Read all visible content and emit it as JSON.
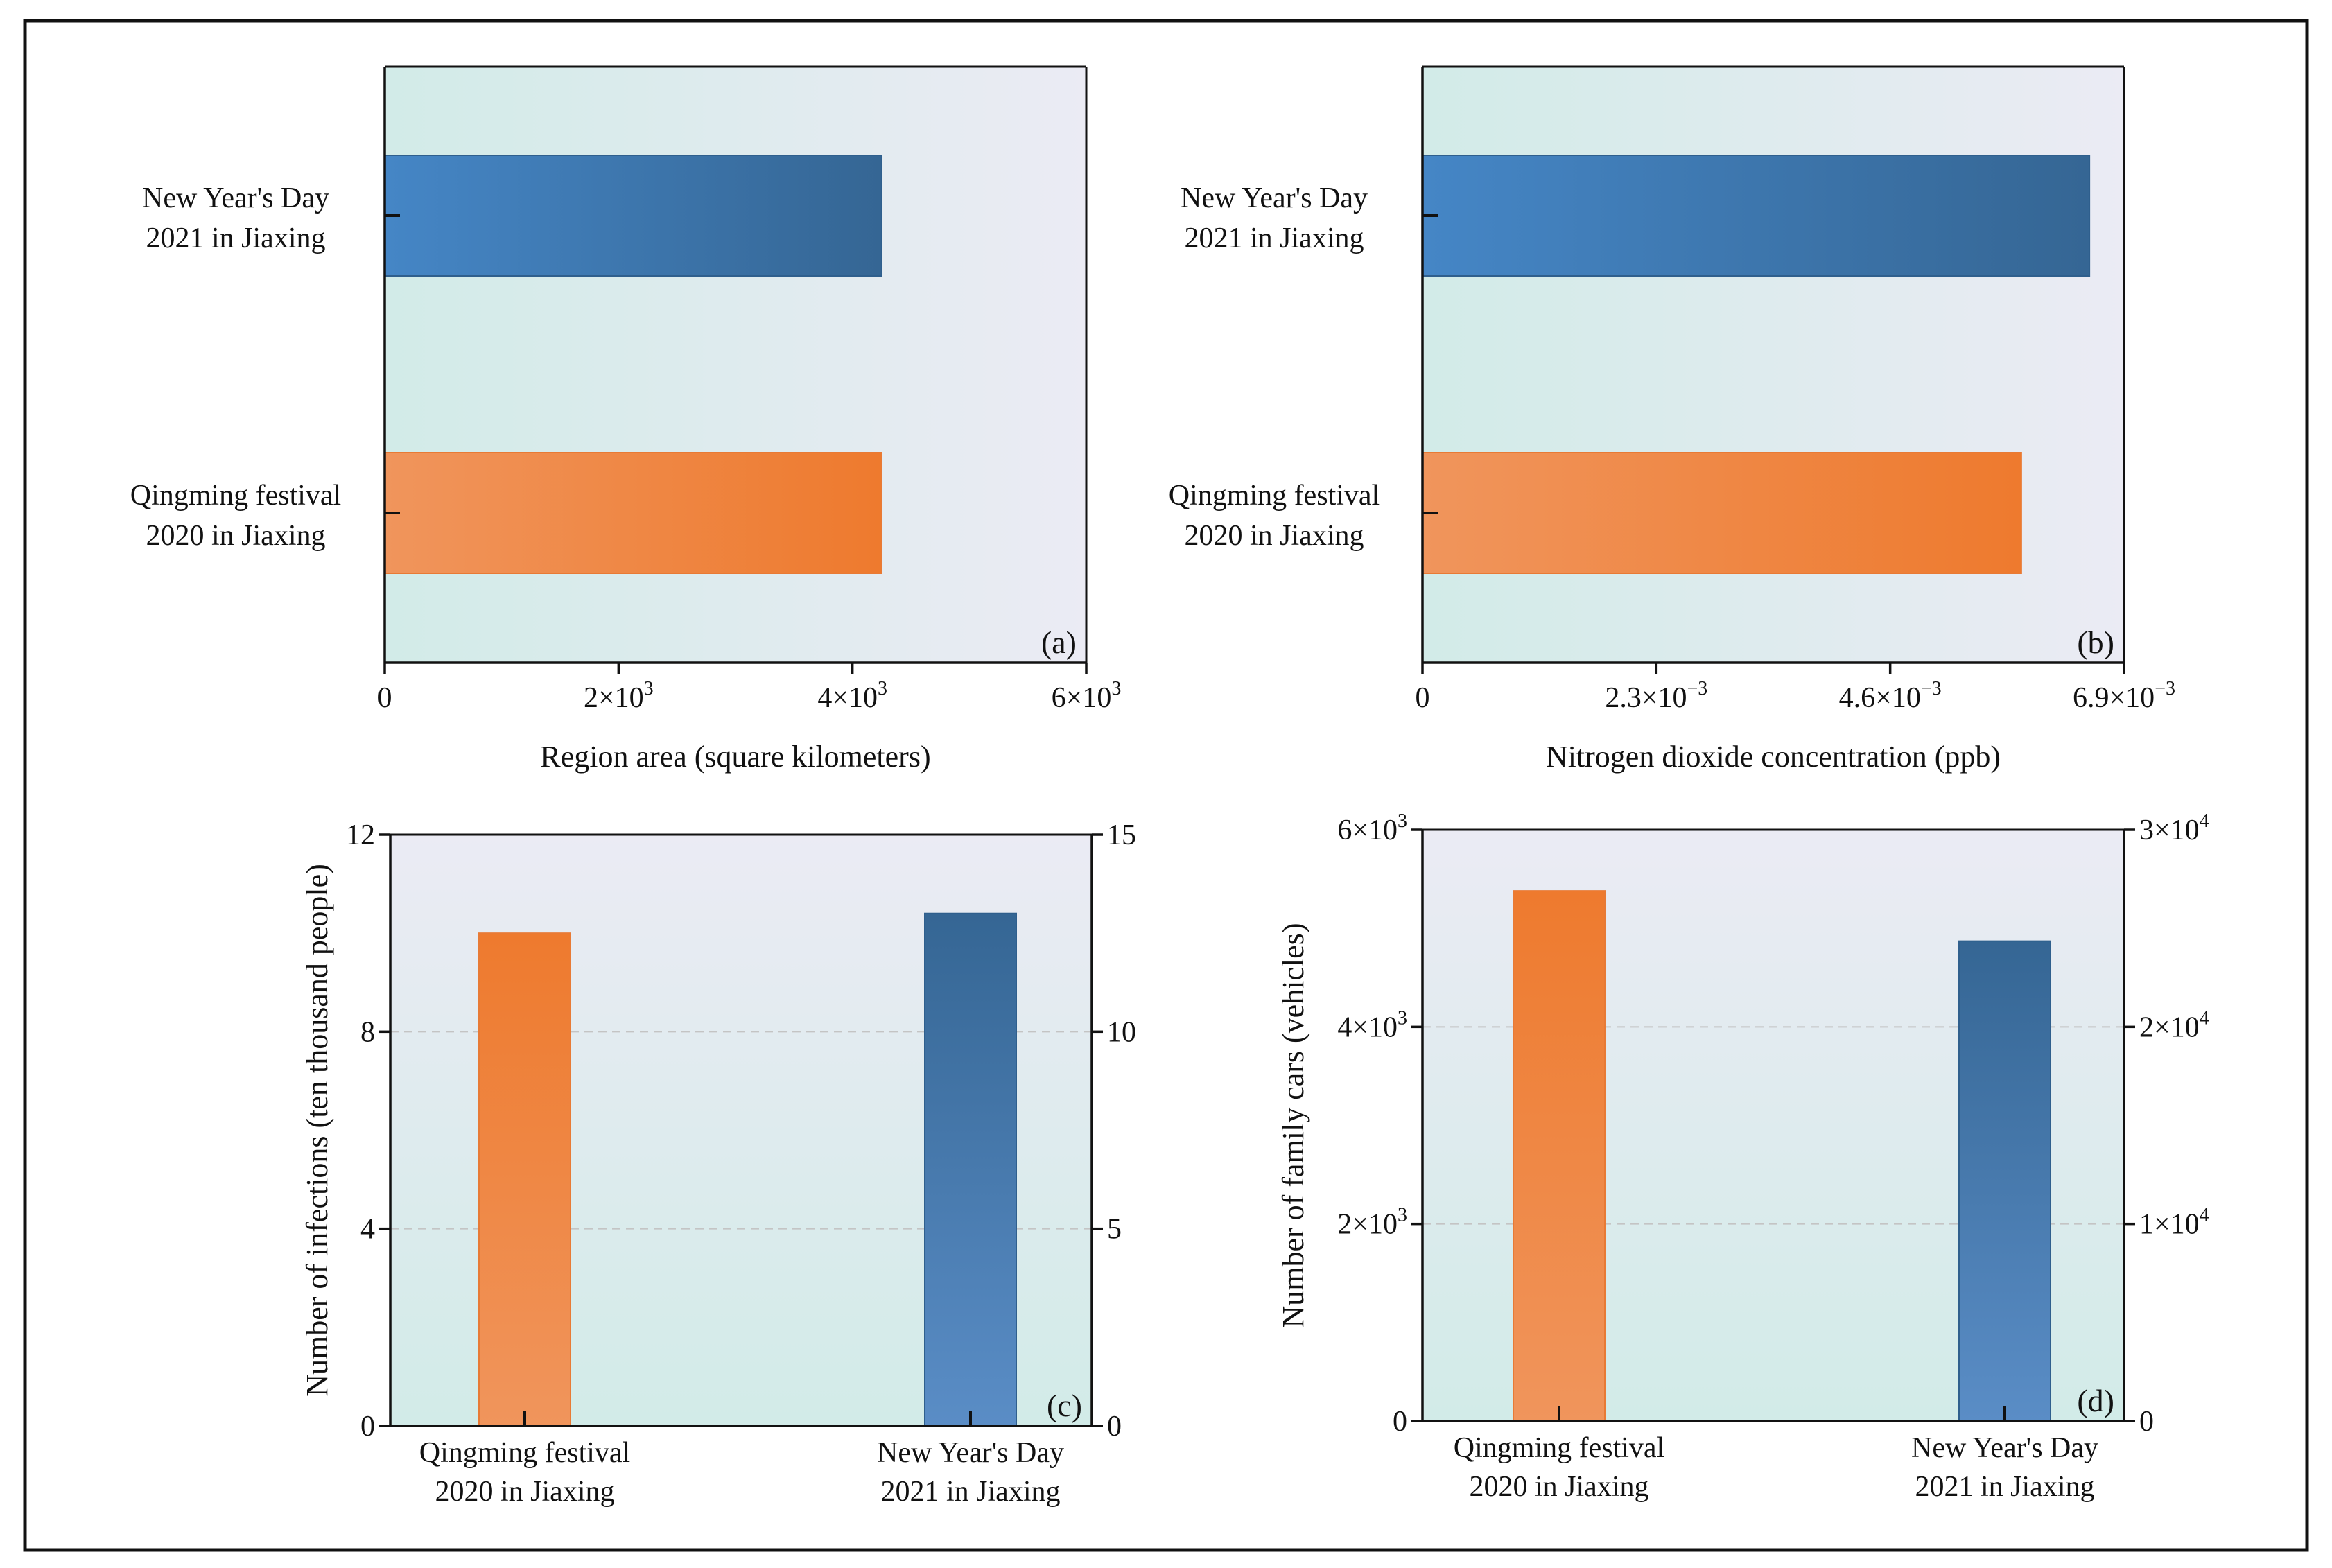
{
  "colors": {
    "orange_light": "#f0945a",
    "orange_dark": "#ee7a2e",
    "blue_light": "#4a86c4",
    "blue_dark": "#356694",
    "bg_teal": "#d3ebe9",
    "bg_lavender": "#ebebf3",
    "grid": "#c9c9c9"
  },
  "chart_data": [
    {
      "id": "a",
      "type": "bar",
      "orientation": "horizontal",
      "panel_label": "(a)",
      "title": "",
      "xlabel": "Region area (square kilometers)",
      "ylabel": "",
      "categories": [
        {
          "line1": "New Year's  Day",
          "line2": "2021 in Jiaxing",
          "value": 4250,
          "color": "blue"
        },
        {
          "line1": "Qingming festival",
          "line2": "2020 in Jiaxing",
          "value": 4250,
          "color": "orange"
        }
      ],
      "xlim": [
        0,
        6000
      ],
      "ticks": [
        {
          "value": 0,
          "base": "0",
          "exp": ""
        },
        {
          "value": 2000,
          "base": "2×10",
          "exp": "3"
        },
        {
          "value": 4000,
          "base": "4×10",
          "exp": "3"
        },
        {
          "value": 6000,
          "base": "6×10",
          "exp": "3"
        }
      ]
    },
    {
      "id": "b",
      "type": "bar",
      "orientation": "horizontal",
      "panel_label": "(b)",
      "title": "",
      "xlabel": "Nitrogen dioxide concentration (ppb)",
      "ylabel": "",
      "categories": [
        {
          "line1": "New Year's  Day",
          "line2": "2021 in Jiaxing",
          "value": 0.00656,
          "color": "blue"
        },
        {
          "line1": "Qingming festival",
          "line2": "2020 in Jiaxing",
          "value": 0.00589,
          "color": "orange"
        }
      ],
      "xlim": [
        0,
        0.0069
      ],
      "ticks": [
        {
          "value": 0,
          "base": "0",
          "exp": ""
        },
        {
          "value": 0.0023,
          "base": "2.3×10",
          "exp": "−3"
        },
        {
          "value": 0.0046,
          "base": "4.6×10",
          "exp": "−3"
        },
        {
          "value": 0.0069,
          "base": "6.9×10",
          "exp": "−3"
        }
      ]
    },
    {
      "id": "c",
      "type": "bar",
      "orientation": "vertical",
      "panel_label": "(c)",
      "title": "",
      "xlabel": "",
      "ylabel": "Number of infections (ten thousand people)",
      "categories": [
        {
          "line1": "Qingming festival",
          "line2": "2020 in Jiaxing",
          "value": 10.0,
          "color": "orange"
        },
        {
          "line1": "New Year's  Day",
          "line2": "2021 in Jiaxing",
          "value": 10.4,
          "color": "blue"
        }
      ],
      "ylim": [
        0,
        12
      ],
      "grid": true,
      "left_ticks": [
        {
          "value": 0,
          "base": "0",
          "exp": ""
        },
        {
          "value": 4,
          "base": "4",
          "exp": ""
        },
        {
          "value": 8,
          "base": "8",
          "exp": ""
        },
        {
          "value": 12,
          "base": "12",
          "exp": ""
        }
      ],
      "right_ticks": [
        {
          "value": 0,
          "base": "0",
          "exp": ""
        },
        {
          "value": 4,
          "base": "5",
          "exp": ""
        },
        {
          "value": 8,
          "base": "10",
          "exp": ""
        },
        {
          "value": 12,
          "base": "15",
          "exp": ""
        }
      ]
    },
    {
      "id": "d",
      "type": "bar",
      "orientation": "vertical",
      "panel_label": "(d)",
      "title": "",
      "xlabel": "",
      "ylabel": "Number of family cars (vehicles)",
      "categories": [
        {
          "line1": "Qingming festival",
          "line2": "2020 in Jiaxing",
          "value": 5380,
          "color": "orange"
        },
        {
          "line1": "New Year's  Day",
          "line2": "2021 in Jiaxing",
          "value": 4870,
          "color": "blue"
        }
      ],
      "ylim": [
        0,
        6000
      ],
      "grid": true,
      "left_ticks": [
        {
          "value": 0,
          "base": "0",
          "exp": ""
        },
        {
          "value": 2000,
          "base": "2×10",
          "exp": "3"
        },
        {
          "value": 4000,
          "base": "4×10",
          "exp": "3"
        },
        {
          "value": 6000,
          "base": "6×10",
          "exp": "3"
        }
      ],
      "right_ticks": [
        {
          "value": 0,
          "base": "0",
          "exp": ""
        },
        {
          "value": 2000,
          "base": "1×10",
          "exp": "4"
        },
        {
          "value": 4000,
          "base": "2×10",
          "exp": "4"
        },
        {
          "value": 6000,
          "base": "3×10",
          "exp": "4"
        }
      ]
    }
  ]
}
